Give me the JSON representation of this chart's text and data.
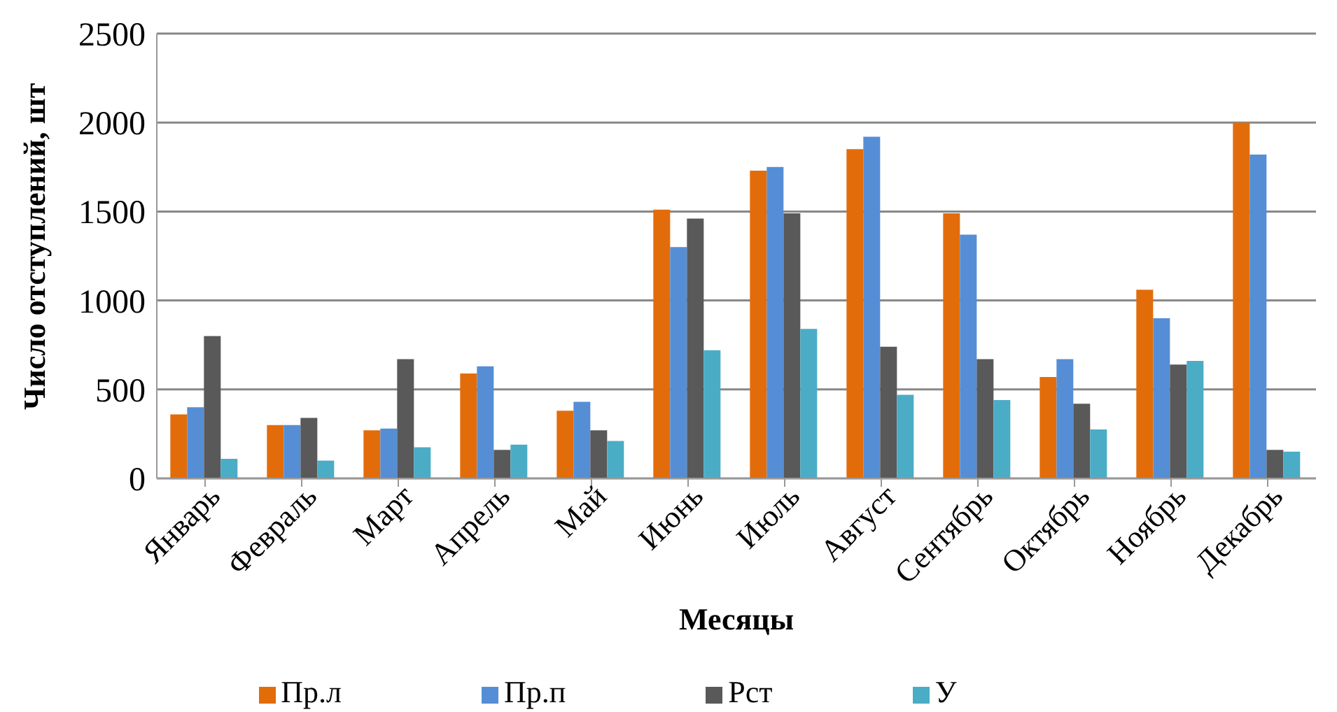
{
  "chart_data": {
    "type": "bar",
    "xlabel": "Месяцы",
    "ylabel": "Число отступлений, шт",
    "categories": [
      "Январь",
      "Февраль",
      "Март",
      "Апрель",
      "Май",
      "Июнь",
      "Июль",
      "Август",
      "Сентябрь",
      "Октябрь",
      "Ноябрь",
      "Декабрь"
    ],
    "series": [
      {
        "name": "Пр.л",
        "color": "#e36c0a",
        "values": [
          360,
          300,
          270,
          590,
          380,
          1510,
          1730,
          1850,
          1490,
          570,
          1060,
          2000
        ]
      },
      {
        "name": "Пр.п",
        "color": "#558ed5",
        "values": [
          400,
          300,
          280,
          630,
          430,
          1300,
          1750,
          1920,
          1370,
          670,
          900,
          1820
        ]
      },
      {
        "name": "Рст",
        "color": "#595959",
        "values": [
          800,
          340,
          670,
          160,
          270,
          1460,
          1490,
          740,
          670,
          420,
          640,
          160
        ]
      },
      {
        "name": "У",
        "color": "#4bacc6",
        "values": [
          110,
          100,
          175,
          190,
          210,
          720,
          840,
          470,
          440,
          275,
          660,
          150
        ]
      }
    ],
    "ylim": [
      0,
      2500
    ],
    "yticks": [
      0,
      500,
      1000,
      1500,
      2000,
      2500
    ],
    "grid": "y",
    "legend": "bottom"
  }
}
